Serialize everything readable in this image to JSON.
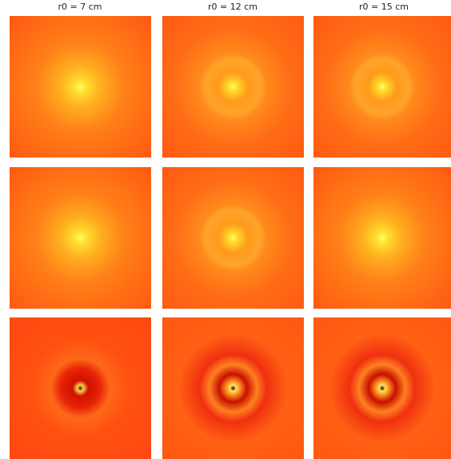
{
  "columns": [
    {
      "title": "r0 = 7 cm"
    },
    {
      "title": "r0 = 12 cm"
    },
    {
      "title": "r0 = 15 cm"
    }
  ]
}
